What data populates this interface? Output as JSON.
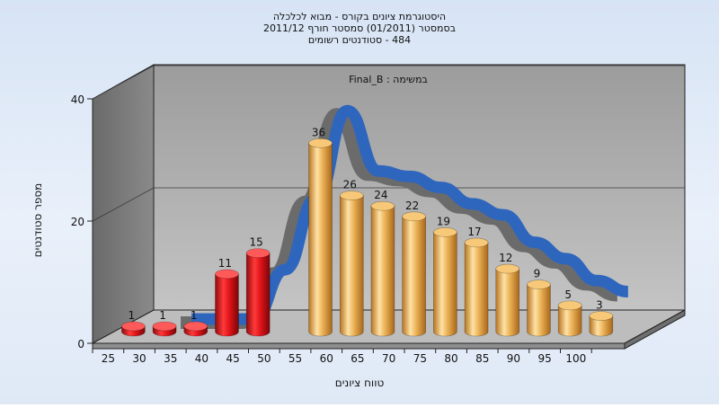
{
  "chart_data": {
    "type": "bar",
    "title_lines": [
      "היסטוגרמת ציונים בקורס - מבוא לכלכלה",
      "בסמסטר  (01/2011)  סמסטר חורף 2011/12",
      "484 - סטודנטים רשומים"
    ],
    "annotation": "Final_B : במשימה",
    "xlabel": "טווח ציונים",
    "ylabel": "מספר סטודנטים",
    "categories": [
      "25",
      "30",
      "35",
      "40",
      "45",
      "50",
      "55",
      "60",
      "65",
      "70",
      "75",
      "80",
      "85",
      "90",
      "95",
      "100"
    ],
    "bars": [
      {
        "x": "25",
        "value": 1,
        "color": "red"
      },
      {
        "x": "30",
        "value": 1,
        "color": "red"
      },
      {
        "x": "35",
        "value": 1,
        "color": "red"
      },
      {
        "x": "40",
        "value": 11,
        "color": "red"
      },
      {
        "x": "45",
        "value": 15,
        "color": "red"
      },
      {
        "x": "55",
        "value": 36,
        "color": "gold"
      },
      {
        "x": "60",
        "value": 26,
        "color": "gold"
      },
      {
        "x": "65",
        "value": 24,
        "color": "gold"
      },
      {
        "x": "70",
        "value": 22,
        "color": "gold"
      },
      {
        "x": "75",
        "value": 19,
        "color": "gold"
      },
      {
        "x": "80",
        "value": 17,
        "color": "gold"
      },
      {
        "x": "85",
        "value": 12,
        "color": "gold"
      },
      {
        "x": "90",
        "value": 9,
        "color": "gold"
      },
      {
        "x": "95",
        "value": 5,
        "color": "gold"
      },
      {
        "x": "100",
        "value": 3,
        "color": "gold"
      }
    ],
    "curve": [
      0,
      0,
      0,
      0,
      9,
      22,
      38,
      27,
      26,
      24,
      21,
      19,
      14,
      11,
      7,
      5
    ],
    "yticks": [
      0,
      20,
      40
    ],
    "ylim": [
      0,
      40
    ],
    "grid": true,
    "colors": {
      "red": "#e0141a",
      "gold": "#e9a842",
      "curve": "#2f66bd"
    }
  }
}
